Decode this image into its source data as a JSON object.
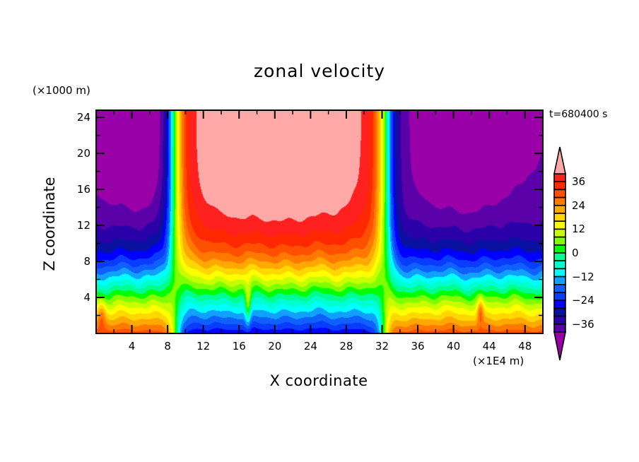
{
  "chart_data": {
    "type": "heatmap",
    "title": "zonal velocity",
    "xlabel": "X coordinate",
    "ylabel": "Z coordinate",
    "x_unit_label": "(×1E4 m)",
    "y_unit_label": "(×1000 m)",
    "time_label": "t=680400 s",
    "xlim": [
      0,
      50
    ],
    "ylim": [
      0,
      24.8
    ],
    "x_ticks": [
      4,
      8,
      12,
      16,
      20,
      24,
      28,
      32,
      36,
      40,
      44,
      48
    ],
    "y_ticks": [
      4,
      8,
      12,
      16,
      20,
      24
    ],
    "x_tick_labels": [
      "4",
      "8",
      "12",
      "16",
      "20",
      "24",
      "28",
      "32",
      "36",
      "40",
      "44",
      "48"
    ],
    "y_tick_labels": [
      "4",
      "8",
      "12",
      "16",
      "20",
      "24"
    ],
    "x_minor_step": 2,
    "y_minor_step": 2,
    "colorbar": {
      "levels": [
        -40,
        -36,
        -32,
        -28,
        -24,
        -20,
        -16,
        -12,
        -8,
        -4,
        0,
        4,
        8,
        12,
        16,
        20,
        24,
        28,
        32,
        36,
        40
      ],
      "tick_labels": [
        "36",
        "24",
        "12",
        "0",
        "−12",
        "−24",
        "−36"
      ],
      "tick_values": [
        36,
        24,
        12,
        0,
        -12,
        -24,
        -36
      ],
      "under_color": "#9a00a8",
      "over_color": "#ffa8a8",
      "colors": [
        "#5a00a8",
        "#2a00a8",
        "#0a10a0",
        "#0000ff",
        "#0a3cff",
        "#1060ff",
        "#10a0ff",
        "#00ffff",
        "#00ffd0",
        "#00ff90",
        "#00ff00",
        "#80ff00",
        "#c8ff00",
        "#ffff00",
        "#ffd800",
        "#ffa800",
        "#ff7800",
        "#ff5000",
        "#ff2800",
        "#ff2020"
      ],
      "extend": "both"
    },
    "field_description": "Zonal velocity vs X (0-50 x1E4 m) and Z (0-24.8 x1000 m): negative jets (~-36 to -40) aloft for x<8 and x>34; strong positive region (>40) aloft between x=12 and x=31; sharp transitions near x=8.5 and x=32.5; velocity sign reverses below z~5 with positive values near surface outside 9-32 and negative values within."
  }
}
